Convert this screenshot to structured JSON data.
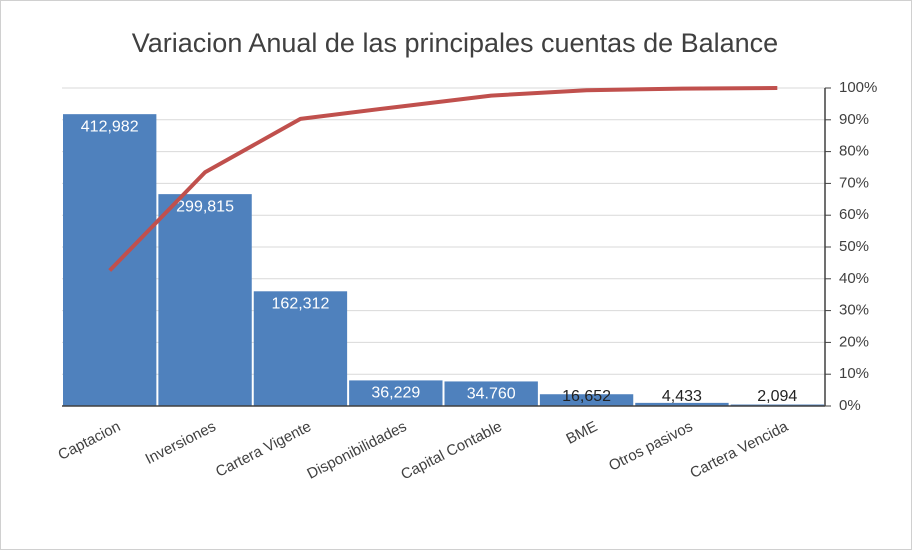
{
  "chart_data": {
    "type": "pareto",
    "title": "Variacion Anual de las principales cuentas de Balance",
    "categories": [
      "Captacion",
      "Inversiones",
      "Cartera Vigente",
      "Disponibilidades",
      "Capital Contable",
      "BME",
      "Otros pasivos",
      "Cartera Vencida"
    ],
    "series": [
      {
        "type": "bar",
        "color": "#4f81bd",
        "values": [
          412982,
          299815,
          162312,
          36229,
          34760,
          16652,
          4433,
          2094
        ],
        "value_labels": [
          "412,982",
          "299,815",
          "162,312",
          "36,229",
          "34.760",
          "16,652",
          "4,433",
          "2,094"
        ]
      },
      {
        "type": "line",
        "color": "#c0504d",
        "axis": "y2",
        "values": [
          42.6,
          73.5,
          90.3,
          94.0,
          97.6,
          99.3,
          99.8,
          100
        ]
      }
    ],
    "ylim": [
      0,
      450000
    ],
    "y2lim": [
      0,
      100
    ],
    "y2ticks": [
      {
        "value": 0,
        "label": "0%"
      },
      {
        "value": 10,
        "label": "10%"
      },
      {
        "value": 20,
        "label": "20%"
      },
      {
        "value": 30,
        "label": "30%"
      },
      {
        "value": 40,
        "label": "40%"
      },
      {
        "value": 50,
        "label": "50%"
      },
      {
        "value": 60,
        "label": "60%"
      },
      {
        "value": 70,
        "label": "70%"
      },
      {
        "value": 80,
        "label": "80%"
      },
      {
        "value": 90,
        "label": "90%"
      },
      {
        "value": 100,
        "label": "100%"
      }
    ],
    "grid": true
  }
}
